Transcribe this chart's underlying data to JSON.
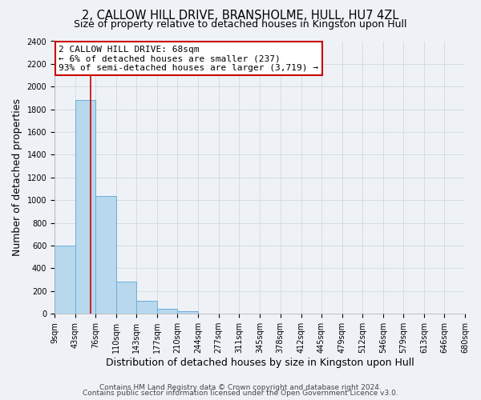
{
  "title": "2, CALLOW HILL DRIVE, BRANSHOLME, HULL, HU7 4ZL",
  "subtitle": "Size of property relative to detached houses in Kingston upon Hull",
  "xlabel": "Distribution of detached houses by size in Kingston upon Hull",
  "ylabel": "Number of detached properties",
  "bin_edges": [
    9,
    43,
    76,
    110,
    143,
    177,
    210,
    244,
    277,
    311,
    345,
    378,
    412,
    445,
    479,
    512,
    546,
    579,
    613,
    646,
    680
  ],
  "bar_heights": [
    600,
    1880,
    1035,
    280,
    115,
    45,
    20,
    0,
    0,
    0,
    0,
    0,
    0,
    0,
    0,
    0,
    0,
    0,
    0,
    0
  ],
  "bar_color": "#b8d8ee",
  "bar_edge_color": "#6aaed6",
  "grid_color": "#d0d8e0",
  "background_color": "#eef2f7",
  "vline_x": 68,
  "vline_color": "#cc0000",
  "annotation_line1": "2 CALLOW HILL DRIVE: 68sqm",
  "annotation_line2": "← 6% of detached houses are smaller (237)",
  "annotation_line3": "93% of semi-detached houses are larger (3,719) →",
  "annotation_box_color": "#ffffff",
  "annotation_box_edge_color": "#cc0000",
  "ylim": [
    0,
    2400
  ],
  "yticks": [
    0,
    200,
    400,
    600,
    800,
    1000,
    1200,
    1400,
    1600,
    1800,
    2000,
    2200,
    2400
  ],
  "tick_labels": [
    "9sqm",
    "43sqm",
    "76sqm",
    "110sqm",
    "143sqm",
    "177sqm",
    "210sqm",
    "244sqm",
    "277sqm",
    "311sqm",
    "345sqm",
    "378sqm",
    "412sqm",
    "445sqm",
    "479sqm",
    "512sqm",
    "546sqm",
    "579sqm",
    "613sqm",
    "646sqm",
    "680sqm"
  ],
  "footer1": "Contains HM Land Registry data © Crown copyright and database right 2024.",
  "footer2": "Contains public sector information licensed under the Open Government Licence v3.0.",
  "title_fontsize": 10.5,
  "subtitle_fontsize": 9,
  "axis_label_fontsize": 9,
  "tick_fontsize": 7,
  "annotation_fontsize": 8,
  "footer_fontsize": 6.5
}
